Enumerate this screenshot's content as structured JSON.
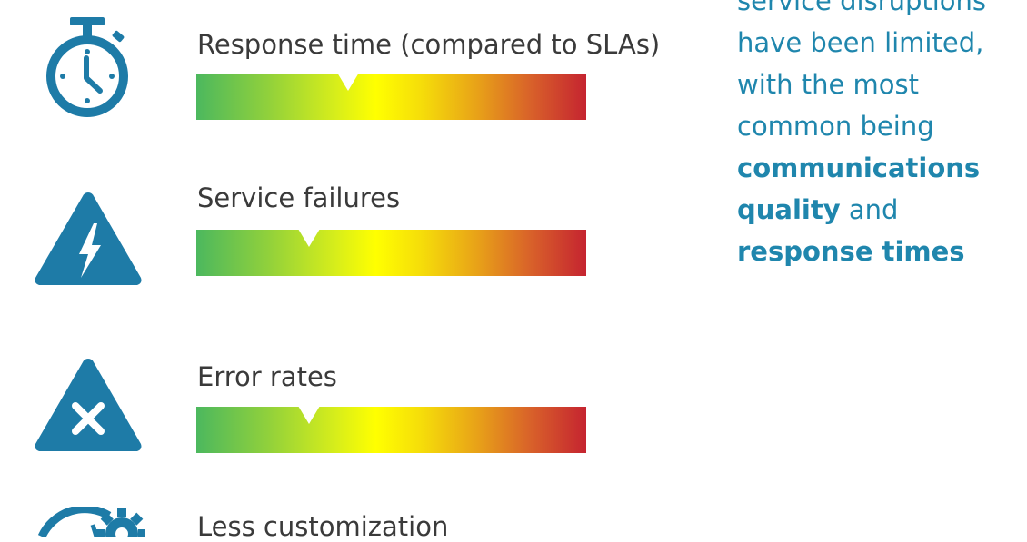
{
  "colors": {
    "icon": "#1e7ba7",
    "callout_text": "#1f86ad",
    "label_text": "#3a3a3a",
    "gauge_start": "#4cb85e",
    "gauge_mid": "#ffff00",
    "gauge_end": "#c52430"
  },
  "metrics": [
    {
      "label": "Response time (compared to SLAs)",
      "icon": "stopwatch-icon",
      "marker_level": 0.39
    },
    {
      "label": "Service failures",
      "icon": "lightning-warning-icon",
      "marker_level": 0.29
    },
    {
      "label": "Error rates",
      "icon": "x-warning-icon",
      "marker_level": 0.29
    },
    {
      "label": "Less customization",
      "icon": "gauge-gear-icon"
    }
  ],
  "callout": {
    "line1": "service disruptions",
    "line2": "have been limited,",
    "line3": "with the most",
    "line4": "common being",
    "bold1": "communications",
    "bold2": "quality",
    "plain_and": " and",
    "bold3": "response times"
  }
}
